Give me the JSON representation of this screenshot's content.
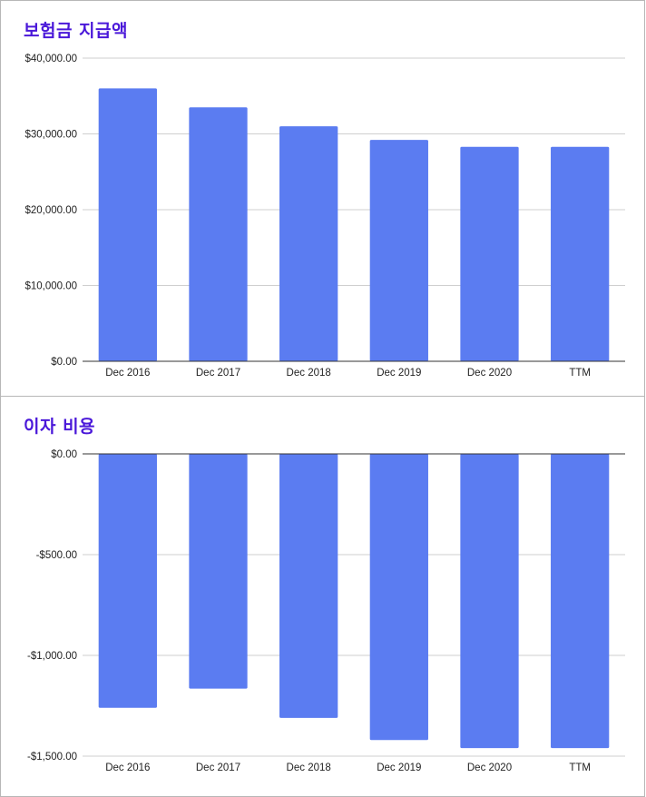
{
  "chart_data": [
    {
      "type": "bar",
      "title": "보험금 지급액",
      "categories": [
        "Dec 2016",
        "Dec 2017",
        "Dec 2018",
        "Dec 2019",
        "Dec 2020",
        "TTM"
      ],
      "values": [
        36000,
        33500,
        31000,
        29200,
        28300,
        28300
      ],
      "ylim": [
        0,
        40000
      ],
      "yticks": [
        0,
        10000,
        20000,
        30000,
        40000
      ],
      "ytick_labels": [
        "$0.00",
        "$10,000.00",
        "$20,000.00",
        "$30,000.00",
        "$40,000.00"
      ],
      "grid": true,
      "bar_color": "#5b7cf1"
    },
    {
      "type": "bar",
      "title": "이자 비용",
      "categories": [
        "Dec 2016",
        "Dec 2017",
        "Dec 2018",
        "Dec 2019",
        "Dec 2020",
        "TTM"
      ],
      "values": [
        -1260,
        -1165,
        -1310,
        -1420,
        -1460,
        -1460
      ],
      "ylim": [
        -1500,
        0
      ],
      "yticks": [
        0,
        -500,
        -1000,
        -1500
      ],
      "ytick_labels": [
        "$0.00",
        "-$500.00",
        "-$1,000.00",
        "-$1,500.00"
      ],
      "grid": true,
      "bar_color": "#5b7cf1"
    }
  ]
}
